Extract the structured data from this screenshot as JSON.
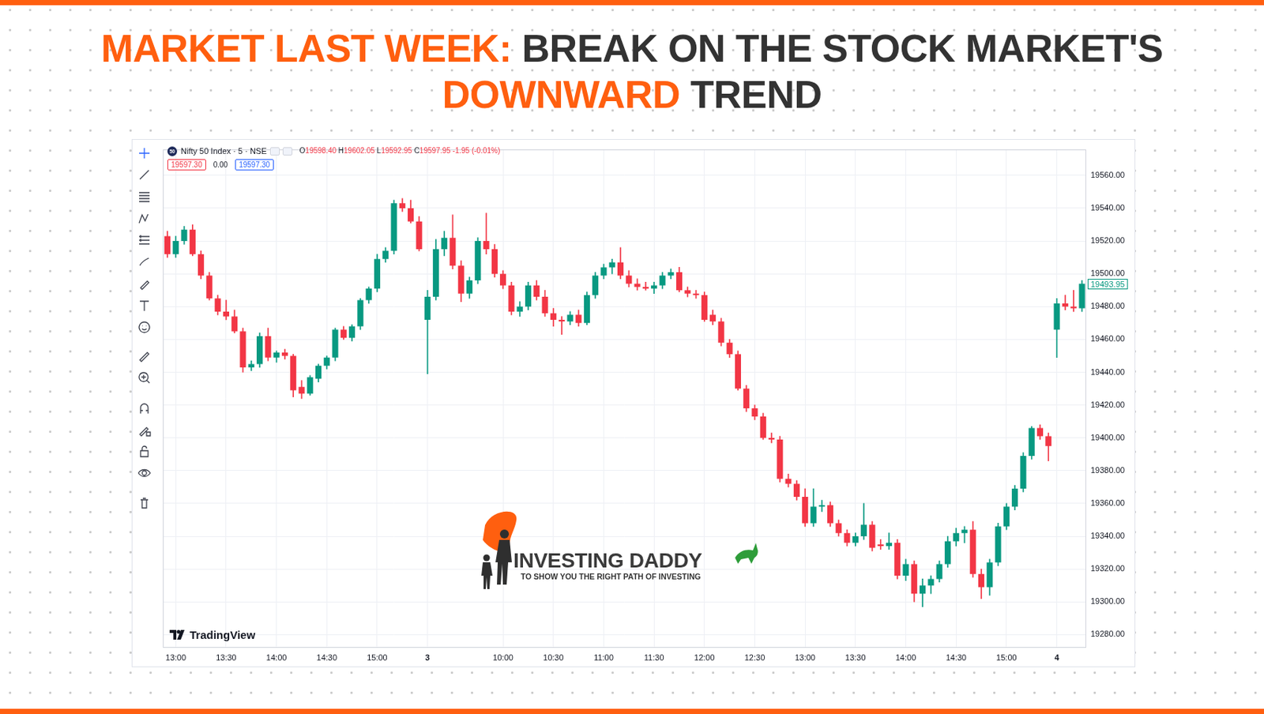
{
  "banner": {
    "title_lines": [
      [
        {
          "text": "MARKET LAST WEEK:",
          "color": "#ff5f0f"
        },
        {
          "text": "BREAK ON THE STOCK MARKET'S",
          "color": "#333333"
        }
      ],
      [
        {
          "text": "DOWNWARD",
          "color": "#ff5f0f"
        },
        {
          "text": "TREND",
          "color": "#333333"
        }
      ]
    ]
  },
  "watermark": {
    "brand": "INVESTING DADDY",
    "tagline": "TO SHOW YOU THE RIGHT PATH OF INVESTING"
  },
  "chart_data": {
    "type": "candlestick",
    "title": "Nifty 50 Index · 5 · NSE",
    "symbol_badge": "50",
    "ohlc_legend": [
      {
        "label": "O",
        "value": "19598.40"
      },
      {
        "label": "H",
        "value": "19602.05"
      },
      {
        "label": "L",
        "value": "19592.95"
      },
      {
        "label": "C",
        "value": "19597.95"
      }
    ],
    "change": "-1.95 (-0.01%)",
    "price_boxes": [
      "19597.30",
      "0.00",
      "19597.30"
    ],
    "source": "TradingView",
    "categories": [
      null,
      "13:00",
      null,
      null,
      null,
      null,
      null,
      "13:30",
      null,
      null,
      null,
      null,
      null,
      "14:00",
      null,
      null,
      null,
      null,
      null,
      "14:30",
      null,
      null,
      null,
      null,
      null,
      "15:00",
      null,
      null,
      null,
      null,
      null,
      "3",
      null,
      null,
      null,
      null,
      null,
      null,
      null,
      null,
      "10:00",
      null,
      null,
      null,
      null,
      null,
      "10:30",
      null,
      null,
      null,
      null,
      null,
      "11:00",
      null,
      null,
      null,
      null,
      null,
      "11:30",
      null,
      null,
      null,
      null,
      null,
      "12:00",
      null,
      null,
      null,
      null,
      null,
      "12:30",
      null,
      null,
      null,
      null,
      null,
      "13:00",
      null,
      null,
      null,
      null,
      null,
      "13:30",
      null,
      null,
      null,
      null,
      null,
      "14:00",
      null,
      null,
      null,
      null,
      null,
      "14:30",
      null,
      null,
      null,
      null,
      null,
      "15:00",
      null,
      null,
      null,
      null,
      null,
      "4",
      null,
      null,
      null
    ],
    "open": [
      19523,
      19512,
      19520,
      19527,
      19512,
      19499,
      19485,
      19477,
      19474,
      19465,
      19443,
      19445,
      19462,
      19449,
      19452,
      19450,
      19431,
      19427,
      19436,
      19444,
      19449,
      19466,
      19461,
      19468,
      19484,
      19491,
      19509,
      19514,
      19543,
      19540,
      19532,
      19472,
      19486,
      19515,
      19522,
      19505,
      19488,
      19496,
      19520,
      19515,
      19500,
      19493,
      19477,
      19480,
      19493,
      19486,
      19476,
      19472,
      19471,
      19475,
      19470,
      19487,
      19499,
      19504,
      19507,
      19499,
      19494,
      19492,
      19491,
      19493,
      19499,
      19501,
      19490,
      19488,
      19487,
      19475,
      19471,
      19458,
      19451,
      19430,
      19418,
      19413,
      19400,
      19399,
      19375,
      19372,
      19364,
      19348,
      19358,
      19359,
      19348,
      19342,
      19336,
      19340,
      19347,
      19335,
      19334,
      19336,
      19316,
      19323,
      19305,
      19310,
      19314,
      19323,
      19337,
      19342,
      19344,
      19317,
      19309,
      19324,
      19346,
      19358,
      19369,
      19389,
      19406,
      19401,
      19466,
      19482,
      19480,
      19479
    ],
    "high": [
      19526,
      19523,
      19529,
      19530,
      19514,
      19501,
      19487,
      19484,
      19478,
      19467,
      19447,
      19464,
      19467,
      19453,
      19454,
      19451,
      19435,
      19438,
      19445,
      19450,
      19467,
      19468,
      19469,
      19485,
      19492,
      19512,
      19516,
      19545,
      19546,
      19545,
      19535,
      19490,
      19521,
      19526,
      19536,
      19508,
      19498,
      19522,
      19537,
      19518,
      19502,
      19495,
      19483,
      19495,
      19496,
      19490,
      19479,
      19474,
      19477,
      19478,
      19489,
      19501,
      19506,
      19509,
      19516,
      19502,
      19497,
      19495,
      19495,
      19501,
      19503,
      19504,
      19492,
      19490,
      19489,
      19478,
      19473,
      19460,
      19453,
      19432,
      19420,
      19415,
      19403,
      19401,
      19378,
      19374,
      19369,
      19369,
      19362,
      19361,
      19350,
      19344,
      19342,
      19360,
      19349,
      19338,
      19342,
      19338,
      19326,
      19325,
      19314,
      19316,
      19325,
      19340,
      19345,
      19346,
      19349,
      19320,
      19326,
      19348,
      19360,
      19371,
      19391,
      19407,
      19408,
      19403,
      19485,
      19487,
      19490,
      19496
    ],
    "low": [
      19510,
      19510,
      19518,
      19511,
      19497,
      19484,
      19475,
      19472,
      19464,
      19440,
      19441,
      19443,
      19447,
      19446,
      19448,
      19425,
      19424,
      19426,
      19434,
      19442,
      19447,
      19460,
      19459,
      19466,
      19482,
      19489,
      19507,
      19512,
      19538,
      19531,
      19514,
      19439,
      19484,
      19511,
      19503,
      19483,
      19485,
      19494,
      19512,
      19498,
      19491,
      19475,
      19474,
      19478,
      19484,
      19474,
      19468,
      19463,
      19469,
      19468,
      19469,
      19485,
      19497,
      19500,
      19497,
      19492,
      19490,
      19490,
      19488,
      19491,
      19497,
      19489,
      19486,
      19485,
      19471,
      19469,
      19456,
      19449,
      19429,
      19416,
      19411,
      19399,
      19397,
      19373,
      19370,
      19362,
      19346,
      19346,
      19355,
      19346,
      19340,
      19334,
      19334,
      19338,
      19331,
      19332,
      19332,
      19314,
      19313,
      19300,
      19297,
      19305,
      19312,
      19321,
      19334,
      19336,
      19315,
      19302,
      19304,
      19322,
      19344,
      19356,
      19367,
      19387,
      19399,
      19386,
      19449,
      19478,
      19477,
      19477
    ],
    "close": [
      19512,
      19520,
      19527,
      19512,
      19499,
      19485,
      19477,
      19474,
      19465,
      19443,
      19445,
      19462,
      19449,
      19452,
      19450,
      19429,
      19427,
      19437,
      19444,
      19449,
      19466,
      19461,
      19468,
      19484,
      19491,
      19509,
      19514,
      19543,
      19540,
      19532,
      19515,
      19486,
      19515,
      19522,
      19505,
      19488,
      19496,
      19520,
      19515,
      19500,
      19493,
      19477,
      19480,
      19493,
      19486,
      19476,
      19472,
      19471,
      19475,
      19470,
      19487,
      19499,
      19504,
      19507,
      19499,
      19494,
      19492,
      19491,
      19493,
      19499,
      19501,
      19490,
      19488,
      19487,
      19472,
      19471,
      19458,
      19451,
      19430,
      19418,
      19413,
      19400,
      19399,
      19375,
      19372,
      19364,
      19348,
      19358,
      19359,
      19348,
      19342,
      19336,
      19340,
      19347,
      19333,
      19334,
      19336,
      19316,
      19323,
      19305,
      19310,
      19314,
      19323,
      19337,
      19342,
      19344,
      19317,
      19309,
      19324,
      19346,
      19358,
      19369,
      19389,
      19406,
      19401,
      19395,
      19482,
      19480,
      19479,
      19493.95
    ],
    "color": {
      "up": "#089981",
      "down": "#f23645"
    },
    "ylim": [
      19272,
      19576
    ],
    "yticks": [
      {
        "value": 19280,
        "label": "19280.00"
      },
      {
        "value": 19300,
        "label": "19300.00"
      },
      {
        "value": 19320,
        "label": "19320.00"
      },
      {
        "value": 19340,
        "label": "19340.00"
      },
      {
        "value": 19360,
        "label": "19360.00"
      },
      {
        "value": 19380,
        "label": "19380.00"
      },
      {
        "value": 19400,
        "label": "19400.00"
      },
      {
        "value": 19420,
        "label": "19420.00"
      },
      {
        "value": 19440,
        "label": "19440.00"
      },
      {
        "value": 19460,
        "label": "19460.00"
      },
      {
        "value": 19480,
        "label": "19480.00"
      },
      {
        "value": 19500,
        "label": "19500.00"
      },
      {
        "value": 19520,
        "label": "19520.00"
      },
      {
        "value": 19540,
        "label": "19540.00"
      },
      {
        "value": 19560,
        "label": "19560.00"
      }
    ],
    "price_tag": {
      "value": 19493.95,
      "label": "19493.95"
    },
    "grid": true
  }
}
